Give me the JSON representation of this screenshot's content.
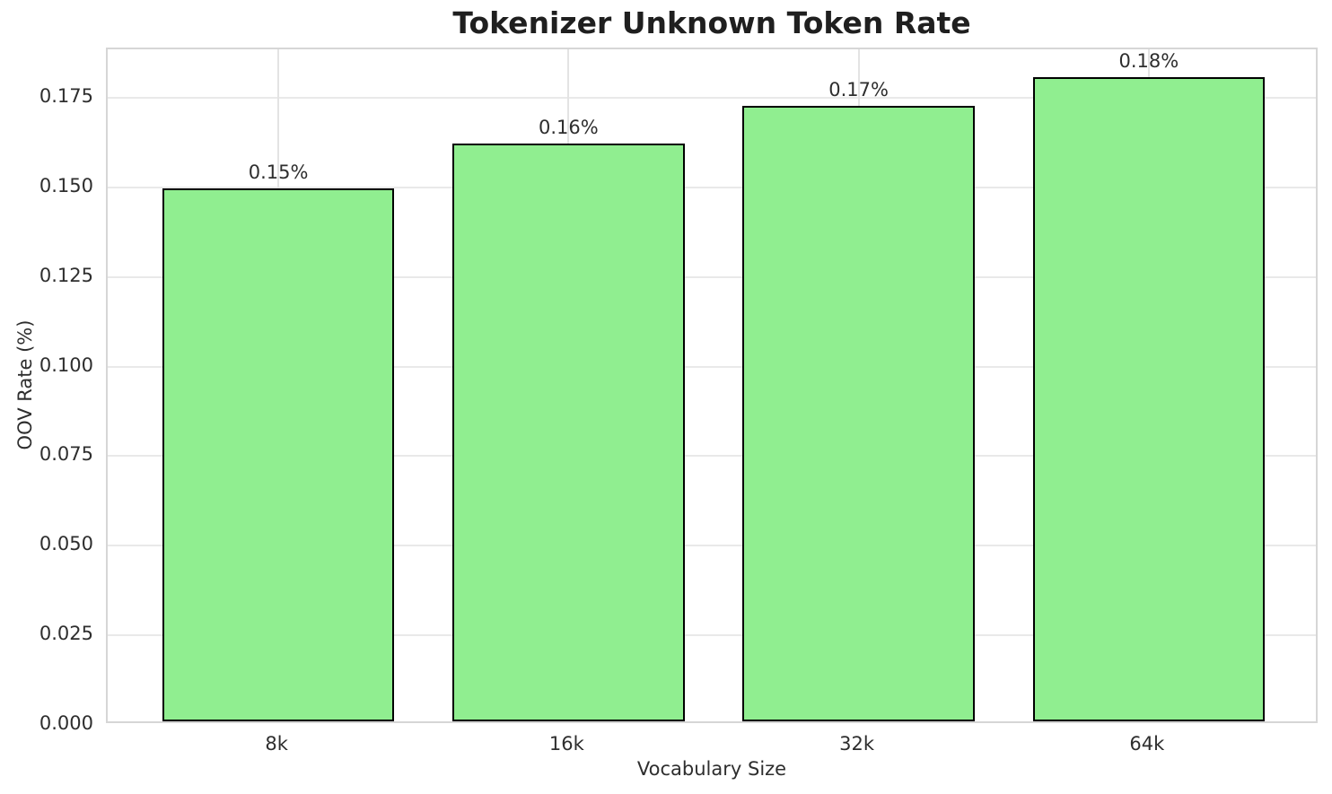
{
  "chart_data": {
    "type": "bar",
    "title": "Tokenizer Unknown Token Rate",
    "xlabel": "Vocabulary Size",
    "ylabel": "OOV Rate (%)",
    "categories": [
      "8k",
      "16k",
      "32k",
      "64k"
    ],
    "values": [
      0.1487,
      0.1612,
      0.1717,
      0.1797
    ],
    "bar_labels": [
      "0.15%",
      "0.16%",
      "0.17%",
      "0.18%"
    ],
    "yticks": [
      0.0,
      0.025,
      0.05,
      0.075,
      0.1,
      0.125,
      0.15,
      0.175
    ],
    "ytick_labels": [
      "0.000",
      "0.025",
      "0.050",
      "0.075",
      "0.100",
      "0.125",
      "0.150",
      "0.175"
    ],
    "ylim": [
      0,
      0.1885
    ],
    "grid": true,
    "legend": null,
    "colors": {
      "bar_fill": "#90EE90",
      "bar_edge": "#000000",
      "grid": "#e9e9e9",
      "spine": "#d6d6d6",
      "text": "#2e2e2e",
      "title": "#1f1f1f",
      "background": "#ffffff"
    }
  }
}
